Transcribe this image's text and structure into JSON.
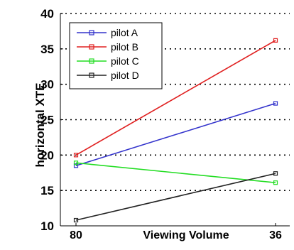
{
  "chart_data": {
    "type": "line",
    "title": "",
    "xlabel": "Viewing Volume",
    "ylabel": "horizontal XTE",
    "categories": [
      "80",
      "36"
    ],
    "ylim": [
      10,
      40
    ],
    "yticks": [
      10,
      15,
      20,
      25,
      30,
      35,
      40
    ],
    "grid": "horizontal dotted",
    "legend_position": "top-left",
    "series": [
      {
        "name": "pilot A",
        "color": "#3333cc",
        "values": [
          18.5,
          27.3
        ]
      },
      {
        "name": "pilot B",
        "color": "#e02020",
        "values": [
          20.0,
          36.2
        ]
      },
      {
        "name": "pilot C",
        "color": "#22dd22",
        "values": [
          18.9,
          16.1
        ]
      },
      {
        "name": "pilot D",
        "color": "#222222",
        "values": [
          10.8,
          17.4
        ]
      }
    ]
  }
}
